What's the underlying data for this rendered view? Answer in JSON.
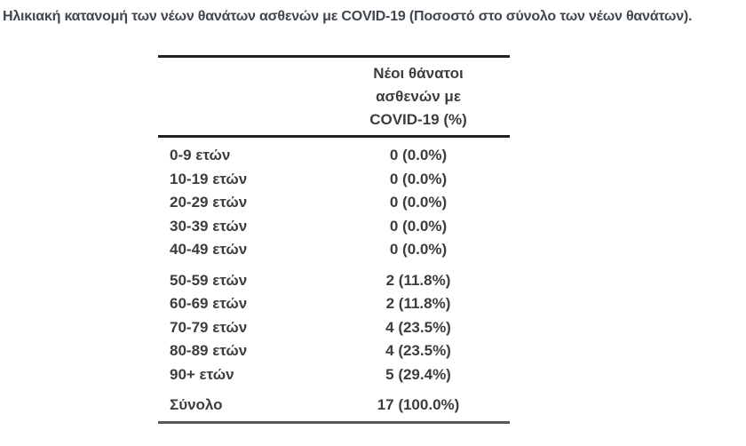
{
  "title": "Ηλικιακή κατανομή των νέων θανάτων ασθενών με COVID-19 (Ποσοστό στο σύνολο των νέων θανάτων).",
  "table": {
    "header": {
      "lines": [
        "Νέοι θάνατοι",
        "ασθενών με",
        "COVID-19 (%)"
      ]
    },
    "groups": [
      {
        "rows": [
          {
            "label": "0-9 ετών",
            "value": "0 (0.0%)"
          },
          {
            "label": "10-19 ετών",
            "value": "0 (0.0%)"
          },
          {
            "label": "20-29 ετών",
            "value": "0 (0.0%)"
          },
          {
            "label": "30-39 ετών",
            "value": "0 (0.0%)"
          },
          {
            "label": "40-49 ετών",
            "value": "0 (0.0%)"
          }
        ]
      },
      {
        "rows": [
          {
            "label": "50-59 ετών",
            "value": "2 (11.8%)"
          },
          {
            "label": "60-69 ετών",
            "value": "2 (11.8%)"
          },
          {
            "label": "70-79 ετών",
            "value": "4 (23.5%)"
          },
          {
            "label": "80-89 ετών",
            "value": "4 (23.5%)"
          },
          {
            "label": "90+ ετών",
            "value": "5 (29.4%)"
          }
        ]
      }
    ],
    "total": {
      "label": "Σύνολο",
      "value": "17 (100.0%)"
    }
  },
  "colors": {
    "title_text": "#40474e",
    "table_text": "#3d3d3d",
    "top_rule": "#222222",
    "header_rule": "#222222",
    "bottom_rule": "#595959",
    "background": "#ffffff"
  }
}
